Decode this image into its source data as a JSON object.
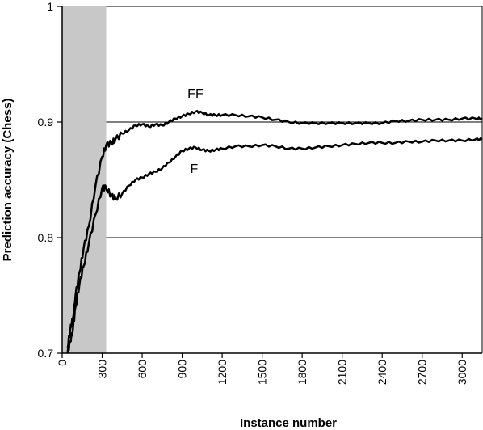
{
  "chart_data": {
    "type": "line",
    "title": "",
    "xlabel": "Instance number",
    "ylabel": "Prediction accuracy (Chess)",
    "xlim": [
      0,
      3150
    ],
    "ylim": [
      0.7,
      1.0
    ],
    "x_ticks": [
      "0",
      "300",
      "600",
      "900",
      "1200",
      "1500",
      "1800",
      "2100",
      "2400",
      "2700",
      "3000"
    ],
    "y_ticks": [
      "0.7",
      "0.8",
      "0.9",
      "1"
    ],
    "gridlines_y": [
      0.8,
      0.9
    ],
    "shaded_region": {
      "x_start": 0,
      "x_end": 330,
      "color": "#c8c8c8"
    },
    "legend": "none",
    "colors": {
      "series": "#000000",
      "grid": "#000000",
      "shade": "#c8c8c8"
    },
    "series": [
      {
        "name": "FF",
        "x": [
          40,
          60,
          80,
          100,
          130,
          160,
          200,
          250,
          300,
          330,
          370,
          400,
          450,
          500,
          550,
          600,
          650,
          700,
          750,
          800,
          850,
          900,
          950,
          1000,
          1050,
          1100,
          1150,
          1200,
          1300,
          1400,
          1500,
          1600,
          1700,
          1800,
          1900,
          2000,
          2100,
          2200,
          2300,
          2400,
          2500,
          2600,
          2700,
          2800,
          2900,
          3000,
          3100,
          3150
        ],
        "y": [
          0.705,
          0.72,
          0.73,
          0.75,
          0.77,
          0.79,
          0.81,
          0.845,
          0.87,
          0.88,
          0.882,
          0.885,
          0.89,
          0.893,
          0.897,
          0.898,
          0.896,
          0.898,
          0.897,
          0.9,
          0.903,
          0.905,
          0.907,
          0.909,
          0.908,
          0.906,
          0.906,
          0.906,
          0.906,
          0.905,
          0.904,
          0.902,
          0.9,
          0.899,
          0.899,
          0.899,
          0.899,
          0.899,
          0.899,
          0.899,
          0.901,
          0.901,
          0.902,
          0.902,
          0.902,
          0.903,
          0.903,
          0.903
        ]
      },
      {
        "name": "F",
        "x": [
          40,
          60,
          80,
          100,
          130,
          160,
          200,
          250,
          300,
          330,
          370,
          400,
          450,
          500,
          550,
          600,
          650,
          700,
          750,
          800,
          850,
          900,
          950,
          1000,
          1050,
          1100,
          1150,
          1200,
          1300,
          1400,
          1500,
          1600,
          1700,
          1800,
          1900,
          2000,
          2100,
          2200,
          2300,
          2400,
          2500,
          2600,
          2700,
          2800,
          2900,
          3000,
          3100,
          3150
        ],
        "y": [
          0.7,
          0.71,
          0.72,
          0.74,
          0.76,
          0.775,
          0.795,
          0.82,
          0.843,
          0.843,
          0.836,
          0.834,
          0.838,
          0.845,
          0.85,
          0.852,
          0.855,
          0.857,
          0.86,
          0.865,
          0.87,
          0.875,
          0.877,
          0.878,
          0.876,
          0.875,
          0.876,
          0.877,
          0.879,
          0.879,
          0.88,
          0.879,
          0.877,
          0.877,
          0.878,
          0.879,
          0.88,
          0.881,
          0.882,
          0.882,
          0.882,
          0.883,
          0.883,
          0.884,
          0.884,
          0.884,
          0.885,
          0.885
        ]
      }
    ]
  }
}
